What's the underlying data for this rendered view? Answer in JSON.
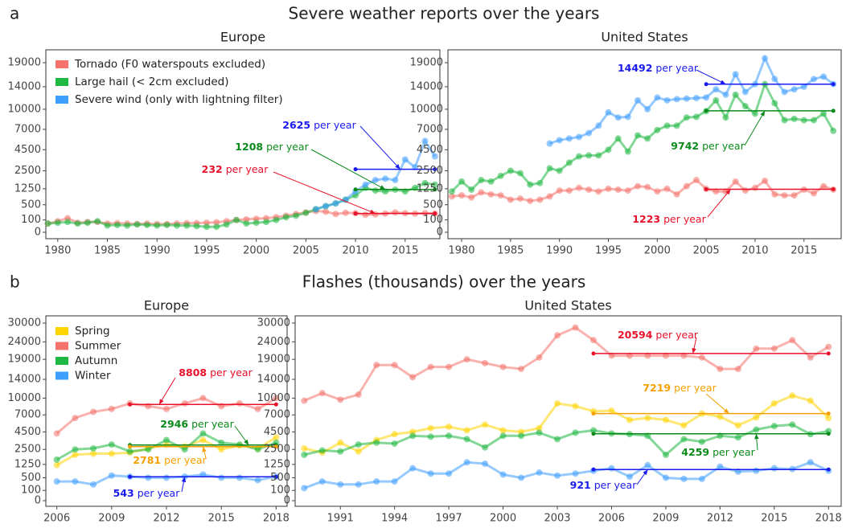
{
  "sections": [
    {
      "tag": "a",
      "title": "Severe weather reports over the years"
    },
    {
      "tag": "b",
      "title": "Flashes (thousands) over the years"
    }
  ],
  "chart_data": [
    {
      "type": "line",
      "title": "Europe",
      "scale": "sqrt",
      "grid": false,
      "legend": "top-left",
      "x": [
        1979,
        1980,
        1981,
        1982,
        1983,
        1984,
        1985,
        1986,
        1987,
        1988,
        1989,
        1990,
        1991,
        1992,
        1993,
        1994,
        1995,
        1996,
        1997,
        1998,
        1999,
        2000,
        2001,
        2002,
        2003,
        2004,
        2005,
        2006,
        2007,
        2008,
        2009,
        2010,
        2011,
        2012,
        2013,
        2014,
        2015,
        2016,
        2017,
        2018
      ],
      "xlim": [
        1978.8,
        2018.5
      ],
      "xticks": [
        1980,
        1985,
        1990,
        1995,
        2000,
        2005,
        2010,
        2015
      ],
      "ylim": [
        0,
        19000
      ],
      "yticks": [
        0,
        100,
        500,
        1250,
        2500,
        4500,
        7000,
        10000,
        14000,
        19000
      ],
      "series": [
        {
          "name": "Tornado (F0 waterspouts excluded)",
          "color": "#f4736b",
          "values": [
            50,
            80,
            130,
            60,
            70,
            70,
            50,
            55,
            50,
            45,
            50,
            45,
            45,
            50,
            55,
            55,
            60,
            65,
            80,
            100,
            110,
            120,
            130,
            150,
            180,
            220,
            260,
            300,
            280,
            220,
            250,
            240,
            200,
            210,
            230,
            260,
            240,
            230,
            240,
            230
          ]
        },
        {
          "name": "Large hail (< 2cm excluded)",
          "color": "#1fb842",
          "values": [
            50,
            60,
            70,
            50,
            60,
            80,
            30,
            35,
            30,
            40,
            35,
            30,
            35,
            30,
            30,
            25,
            20,
            20,
            40,
            100,
            50,
            60,
            70,
            100,
            150,
            180,
            250,
            350,
            450,
            550,
            700,
            900,
            1300,
            1150,
            1100,
            1200,
            1100,
            1300,
            1600,
            1500
          ]
        },
        {
          "name": "Severe wind (only with lightning filter)",
          "color": "#3f9fff",
          "values": [
            null,
            null,
            null,
            null,
            null,
            null,
            null,
            null,
            null,
            null,
            null,
            null,
            null,
            null,
            null,
            null,
            null,
            null,
            null,
            null,
            null,
            null,
            null,
            null,
            null,
            null,
            null,
            350,
            450,
            550,
            700,
            1100,
            1500,
            1800,
            1900,
            1800,
            3500,
            2800,
            5500,
            3800
          ]
        }
      ],
      "means": [
        {
          "value": 2625,
          "text": "per year",
          "from": 2010,
          "to": 2018,
          "color": "#1a1aee"
        },
        {
          "value": 1208,
          "text": "per year",
          "from": 2010,
          "to": 2018,
          "color": "#0a8a1a"
        },
        {
          "value": 232,
          "text": "per year",
          "from": 2010,
          "to": 2018,
          "color": "#e8102a"
        }
      ]
    },
    {
      "type": "line",
      "title": "United States",
      "scale": "sqrt",
      "grid": false,
      "x": [
        1979,
        1980,
        1981,
        1982,
        1983,
        1984,
        1985,
        1986,
        1987,
        1988,
        1989,
        1990,
        1991,
        1992,
        1993,
        1994,
        1995,
        1996,
        1997,
        1998,
        1999,
        2000,
        2001,
        2002,
        2003,
        2004,
        2005,
        2006,
        2007,
        2008,
        2009,
        2010,
        2011,
        2012,
        2013,
        2014,
        2015,
        2016,
        2017,
        2018
      ],
      "xlim": [
        1978.6,
        2018.8
      ],
      "xticks": [
        1980,
        1985,
        1990,
        1995,
        2000,
        2005,
        2010,
        2015
      ],
      "ylim": [
        0,
        19000
      ],
      "yticks": [
        0,
        100,
        500,
        1250,
        2500,
        4500,
        7000,
        10000,
        14000,
        19000
      ],
      "series": [
        {
          "color": "#f4736b",
          "values": [
            850,
            900,
            800,
            1050,
            950,
            900,
            700,
            750,
            650,
            700,
            850,
            1150,
            1150,
            1300,
            1200,
            1100,
            1250,
            1200,
            1150,
            1400,
            1350,
            1100,
            1250,
            950,
            1400,
            1800,
            1250,
            1100,
            1100,
            1700,
            1150,
            1300,
            1750,
            950,
            900,
            900,
            1200,
            1000,
            1400,
            1200
          ]
        },
        {
          "color": "#1fb842",
          "values": [
            1100,
            1700,
            1200,
            1800,
            1700,
            2100,
            2500,
            2300,
            1500,
            1600,
            2700,
            2500,
            3200,
            3800,
            3900,
            3900,
            4500,
            5800,
            4300,
            6200,
            5800,
            6900,
            7500,
            7500,
            8700,
            8800,
            9700,
            11500,
            8700,
            12500,
            10500,
            9300,
            14500,
            11000,
            8300,
            8500,
            8300,
            8300,
            9300,
            6800
          ]
        },
        {
          "color": "#3f9fff",
          "values": [
            null,
            null,
            null,
            null,
            null,
            null,
            null,
            null,
            null,
            null,
            5200,
            5600,
            5800,
            6000,
            6500,
            7500,
            9500,
            8700,
            8800,
            11500,
            10000,
            12000,
            11500,
            11700,
            11800,
            11900,
            12000,
            13500,
            12500,
            16500,
            13000,
            14500,
            20000,
            15500,
            13000,
            13500,
            14000,
            15500,
            16000,
            14500
          ]
        }
      ],
      "means": [
        {
          "value": 14492,
          "text": "per year",
          "from": 2005,
          "to": 2018,
          "color": "#1a1aee"
        },
        {
          "value": 9742,
          "text": "per year",
          "from": 2005,
          "to": 2018,
          "color": "#0a8a1a"
        },
        {
          "value": 1223,
          "text": "per year",
          "from": 2005,
          "to": 2018,
          "color": "#e8102a"
        }
      ]
    },
    {
      "type": "line",
      "title": "Europe",
      "scale": "sqrt",
      "grid": false,
      "legend": "top-left",
      "x": [
        2006,
        2007,
        2008,
        2009,
        2010,
        2011,
        2012,
        2013,
        2014,
        2015,
        2016,
        2017,
        2018
      ],
      "xlim": [
        2005.4,
        2018.6
      ],
      "xticks": [
        2006,
        2009,
        2012,
        2015,
        2018
      ],
      "ylim": [
        0,
        30000
      ],
      "yticks": [
        0,
        100,
        500,
        1250,
        2500,
        4500,
        7000,
        10000,
        14000,
        19000,
        24000,
        30000
      ],
      "series": [
        {
          "name": "Spring",
          "color": "#ffd400",
          "values": [
            1200,
            2000,
            2100,
            2100,
            2200,
            2600,
            3000,
            2800,
            3500,
            2500,
            2900,
            2600,
            3800
          ]
        },
        {
          "name": "Summer",
          "color": "#f4736b",
          "values": [
            4300,
            6500,
            7500,
            8000,
            9000,
            8500,
            8000,
            9000,
            10000,
            8500,
            9000,
            8000,
            10000
          ]
        },
        {
          "name": "Autumn",
          "color": "#1fb842",
          "values": [
            1600,
            2500,
            2600,
            3000,
            2300,
            2500,
            3500,
            2500,
            4300,
            3200,
            3000,
            2500,
            3200
          ]
        },
        {
          "name": "Winter",
          "color": "#3f9fff",
          "values": [
            350,
            350,
            250,
            600,
            550,
            500,
            500,
            550,
            650,
            500,
            500,
            400,
            550
          ]
        }
      ],
      "means": [
        {
          "value": 8808,
          "text": "per year",
          "from": 2010,
          "to": 2018,
          "color": "#e8102a"
        },
        {
          "value": 2946,
          "text": "per year",
          "from": 2010,
          "to": 2018,
          "color": "#0a8a1a"
        },
        {
          "value": 2781,
          "text": "per year",
          "from": 2010,
          "to": 2018,
          "color": "#f5a000"
        },
        {
          "value": 543,
          "text": "per year",
          "from": 2010,
          "to": 2018,
          "color": "#1a1aee"
        }
      ]
    },
    {
      "type": "line",
      "title": "United States",
      "scale": "sqrt",
      "grid": false,
      "x": [
        1989,
        1990,
        1991,
        1992,
        1993,
        1994,
        1995,
        1996,
        1997,
        1998,
        1999,
        2000,
        2001,
        2002,
        2003,
        2004,
        2005,
        2006,
        2007,
        2008,
        2009,
        2010,
        2011,
        2012,
        2013,
        2014,
        2015,
        2016,
        2017,
        2018
      ],
      "xlim": [
        1988.5,
        2018.7
      ],
      "xticks": [
        1991,
        1994,
        1997,
        2000,
        2003,
        2006,
        2009,
        2012,
        2015,
        2018
      ],
      "ylim": [
        0,
        30000
      ],
      "yticks": [
        0,
        100,
        500,
        1250,
        2500,
        4500,
        7000,
        10000,
        14000,
        19000,
        24000,
        30000
      ],
      "series": [
        {
          "color": "#ffd400",
          "values": [
            2600,
            2200,
            3200,
            2300,
            3500,
            4200,
            4500,
            5000,
            5200,
            4700,
            5500,
            4700,
            4500,
            5000,
            9000,
            8500,
            7600,
            7700,
            6200,
            6500,
            6200,
            5400,
            7200,
            6700,
            5400,
            6600,
            9000,
            10500,
            9500,
            6500
          ]
        },
        {
          "color": "#f4736b",
          "values": [
            9500,
            11000,
            9700,
            10700,
            17500,
            17500,
            14500,
            17000,
            17000,
            19000,
            18000,
            17000,
            16500,
            19500,
            26000,
            28500,
            24500,
            20000,
            20000,
            20000,
            20000,
            20000,
            19500,
            16500,
            16500,
            22000,
            22000,
            24500,
            19500,
            22500
          ]
        },
        {
          "color": "#1fb842",
          "values": [
            2000,
            2400,
            2300,
            3000,
            3200,
            3100,
            4000,
            3900,
            4000,
            3600,
            2700,
            4000,
            4000,
            4400,
            3600,
            4400,
            4700,
            4300,
            4200,
            4000,
            2000,
            3600,
            3300,
            4000,
            3800,
            4800,
            5300,
            5500,
            4200,
            4600
          ]
        },
        {
          "color": "#3f9fff",
          "values": [
            150,
            350,
            250,
            250,
            350,
            350,
            1000,
            700,
            700,
            1400,
            1300,
            650,
            500,
            750,
            600,
            700,
            850,
            1000,
            550,
            1200,
            500,
            450,
            450,
            1100,
            800,
            850,
            1000,
            950,
            1400,
            850
          ]
        }
      ],
      "means": [
        {
          "value": 20594,
          "text": "per year",
          "from": 2005,
          "to": 2018,
          "color": "#e8102a"
        },
        {
          "value": 7219,
          "text": "per year",
          "from": 2005,
          "to": 2018,
          "color": "#f5a000"
        },
        {
          "value": 4259,
          "text": "per year",
          "from": 2005,
          "to": 2018,
          "color": "#0a8a1a"
        },
        {
          "value": 921,
          "text": "per year",
          "from": 2005,
          "to": 2018,
          "color": "#1a1aee"
        }
      ]
    }
  ]
}
